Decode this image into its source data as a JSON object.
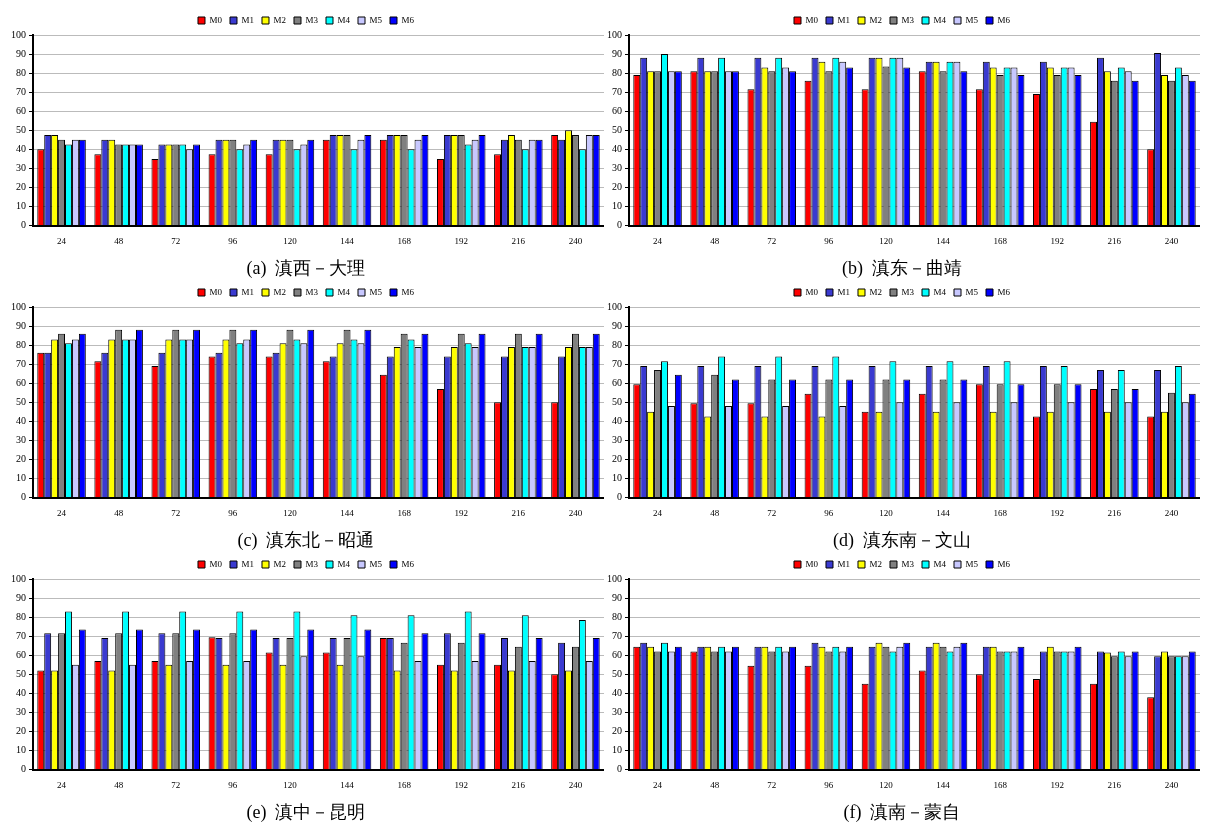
{
  "chart_data": [
    {
      "type": "bar",
      "title": "(a)  滇西－大理",
      "categories": [
        "24",
        "48",
        "72",
        "96",
        "120",
        "144",
        "168",
        "192",
        "216",
        "240"
      ],
      "ylim": [
        0,
        100
      ],
      "yticks": [
        0,
        10,
        20,
        30,
        40,
        50,
        60,
        70,
        80,
        90,
        100
      ],
      "grid": "y",
      "legend": "top",
      "series": [
        {
          "name": "M0",
          "color": "#ff0000",
          "values": [
            40,
            37.5,
            35,
            37.5,
            37.5,
            45,
            45,
            35,
            37.5,
            47.5
          ]
        },
        {
          "name": "M1",
          "color": "#3a3ad0",
          "values": [
            47.5,
            45,
            42.5,
            45,
            45,
            47.5,
            47.5,
            47.5,
            45,
            45
          ]
        },
        {
          "name": "M2",
          "color": "#ffff00",
          "values": [
            47.5,
            45,
            42.5,
            45,
            45,
            47.5,
            47.5,
            47.5,
            47.5,
            50
          ]
        },
        {
          "name": "M3",
          "color": "#808080",
          "values": [
            45,
            42.5,
            42.5,
            45,
            45,
            47.5,
            47.5,
            47.5,
            45,
            47.5
          ]
        },
        {
          "name": "M4",
          "color": "#00ffff",
          "values": [
            42.5,
            42.5,
            42.5,
            40,
            40,
            40,
            40,
            42.5,
            40,
            40
          ]
        },
        {
          "name": "M5",
          "color": "#c8c8ff",
          "values": [
            45,
            42.5,
            40,
            42.5,
            42.5,
            45,
            45,
            45,
            45,
            47.5
          ]
        },
        {
          "name": "M6",
          "color": "#0000ff",
          "values": [
            45,
            42.5,
            42.5,
            45,
            45,
            47.5,
            47.5,
            47.5,
            45,
            47.5
          ]
        }
      ]
    },
    {
      "type": "bar",
      "title": "(b)  滇东－曲靖",
      "categories": [
        "24",
        "48",
        "72",
        "96",
        "120",
        "144",
        "168",
        "192",
        "216",
        "240"
      ],
      "ylim": [
        0,
        100
      ],
      "yticks": [
        0,
        10,
        20,
        30,
        40,
        50,
        60,
        70,
        80,
        90,
        100
      ],
      "grid": "y",
      "legend": "top",
      "series": [
        {
          "name": "M0",
          "color": "#ff0000",
          "values": [
            79,
            81,
            71.5,
            76,
            71.5,
            81,
            71.5,
            69,
            54.5,
            40
          ]
        },
        {
          "name": "M1",
          "color": "#3a3ad0",
          "values": [
            88,
            88,
            88,
            88,
            88,
            86,
            86,
            86,
            88,
            90.5
          ]
        },
        {
          "name": "M2",
          "color": "#ffff00",
          "values": [
            81,
            81,
            83,
            86,
            88,
            86,
            83,
            83,
            81,
            79
          ]
        },
        {
          "name": "M3",
          "color": "#808080",
          "values": [
            81,
            81,
            81,
            81,
            83.5,
            81,
            79,
            79,
            76,
            76
          ]
        },
        {
          "name": "M4",
          "color": "#00ffff",
          "values": [
            90,
            88,
            88,
            88,
            88,
            86,
            83,
            83,
            83,
            83
          ]
        },
        {
          "name": "M5",
          "color": "#c8c8ff",
          "values": [
            81,
            81,
            83,
            86,
            88,
            86,
            83,
            83,
            81,
            79
          ]
        },
        {
          "name": "M6",
          "color": "#0000ff",
          "values": [
            81,
            81,
            81,
            83,
            83,
            81,
            79,
            79,
            76,
            76
          ]
        }
      ]
    },
    {
      "type": "bar",
      "title": "(c)  滇东北－昭通",
      "categories": [
        "24",
        "48",
        "72",
        "96",
        "120",
        "144",
        "168",
        "192",
        "216",
        "240"
      ],
      "ylim": [
        0,
        100
      ],
      "yticks": [
        0,
        10,
        20,
        30,
        40,
        50,
        60,
        70,
        80,
        90,
        100
      ],
      "grid": "y",
      "legend": "top",
      "series": [
        {
          "name": "M0",
          "color": "#ff0000",
          "values": [
            76,
            71.5,
            69,
            74,
            74,
            71.5,
            64.5,
            57,
            50,
            50
          ]
        },
        {
          "name": "M1",
          "color": "#3a3ad0",
          "values": [
            76,
            76,
            76,
            76,
            76,
            74,
            74,
            74,
            74,
            74
          ]
        },
        {
          "name": "M2",
          "color": "#ffff00",
          "values": [
            83,
            83,
            83,
            83,
            81,
            81,
            79,
            79,
            79,
            79
          ]
        },
        {
          "name": "M3",
          "color": "#808080",
          "values": [
            86,
            88,
            88,
            88,
            88,
            88,
            86,
            86,
            86,
            86
          ]
        },
        {
          "name": "M4",
          "color": "#00ffff",
          "values": [
            81,
            83,
            83,
            81,
            83,
            83,
            83,
            81,
            79,
            79
          ]
        },
        {
          "name": "M5",
          "color": "#c8c8ff",
          "values": [
            83,
            83,
            83,
            83,
            81,
            81,
            79,
            79,
            79,
            79
          ]
        },
        {
          "name": "M6",
          "color": "#0000ff",
          "values": [
            86,
            88,
            88,
            88,
            88,
            88,
            86,
            86,
            86,
            86
          ]
        }
      ]
    },
    {
      "type": "bar",
      "title": "(d)  滇东南－文山",
      "categories": [
        "24",
        "48",
        "72",
        "96",
        "120",
        "144",
        "168",
        "192",
        "216",
        "240"
      ],
      "ylim": [
        0,
        100
      ],
      "yticks": [
        0,
        10,
        20,
        30,
        40,
        50,
        60,
        70,
        80,
        90,
        100
      ],
      "grid": "y",
      "legend": "top",
      "series": [
        {
          "name": "M0",
          "color": "#ff0000",
          "values": [
            59.5,
            49.5,
            49.5,
            54.5,
            45,
            54.5,
            59.5,
            42.5,
            57,
            42.5
          ]
        },
        {
          "name": "M1",
          "color": "#3a3ad0",
          "values": [
            69,
            69,
            69,
            69,
            69,
            69,
            69,
            69,
            67,
            67
          ]
        },
        {
          "name": "M2",
          "color": "#ffff00",
          "values": [
            45,
            42.5,
            42.5,
            42.5,
            45,
            45,
            45,
            45,
            45,
            45
          ]
        },
        {
          "name": "M3",
          "color": "#808080",
          "values": [
            67,
            64.5,
            62,
            62,
            62,
            62,
            59.5,
            59.5,
            57,
            55
          ]
        },
        {
          "name": "M4",
          "color": "#00ffff",
          "values": [
            71.5,
            74,
            74,
            74,
            71.5,
            71.5,
            71.5,
            69,
            67,
            69
          ]
        },
        {
          "name": "M5",
          "color": "#c8c8ff",
          "values": [
            48,
            48,
            48,
            48,
            50,
            50,
            50,
            50,
            50,
            50
          ]
        },
        {
          "name": "M6",
          "color": "#0000ff",
          "values": [
            64.5,
            62,
            62,
            62,
            62,
            62,
            59.5,
            59.5,
            57,
            54.5
          ]
        }
      ]
    },
    {
      "type": "bar",
      "title": "(e)  滇中－昆明",
      "categories": [
        "24",
        "48",
        "72",
        "96",
        "120",
        "144",
        "168",
        "192",
        "216",
        "240"
      ],
      "ylim": [
        0,
        100
      ],
      "yticks": [
        0,
        10,
        20,
        30,
        40,
        50,
        60,
        70,
        80,
        90,
        100
      ],
      "grid": "y",
      "legend": "top",
      "series": [
        {
          "name": "M0",
          "color": "#ff0000",
          "values": [
            52,
            57,
            57,
            69.5,
            61.5,
            61.5,
            69,
            55,
            55,
            50
          ]
        },
        {
          "name": "M1",
          "color": "#3a3ad0",
          "values": [
            71.5,
            69,
            71.5,
            69,
            69,
            69,
            69,
            71.5,
            69,
            66.5
          ]
        },
        {
          "name": "M2",
          "color": "#ffff00",
          "values": [
            52,
            52,
            55,
            55,
            55,
            55,
            52,
            52,
            52,
            52
          ]
        },
        {
          "name": "M3",
          "color": "#808080",
          "values": [
            71.5,
            71.5,
            71.5,
            71.5,
            69,
            69,
            66.5,
            66.5,
            64.5,
            64.5
          ]
        },
        {
          "name": "M4",
          "color": "#00ffff",
          "values": [
            83,
            83,
            83,
            83,
            83,
            81,
            81,
            83,
            81,
            78.5
          ]
        },
        {
          "name": "M5",
          "color": "#c8c8ff",
          "values": [
            55,
            55,
            57,
            57,
            59.5,
            59.5,
            57,
            57,
            57,
            57
          ]
        },
        {
          "name": "M6",
          "color": "#0000ff",
          "values": [
            73.5,
            73.5,
            73.5,
            73.5,
            73.5,
            73.5,
            71.5,
            71.5,
            69,
            69
          ]
        }
      ]
    },
    {
      "type": "bar",
      "title": "(f)  滇南－蒙自",
      "categories": [
        "24",
        "48",
        "72",
        "96",
        "120",
        "144",
        "168",
        "192",
        "216",
        "240"
      ],
      "ylim": [
        0,
        100
      ],
      "yticks": [
        0,
        10,
        20,
        30,
        40,
        50,
        60,
        70,
        80,
        90,
        100
      ],
      "grid": "y",
      "legend": "top",
      "series": [
        {
          "name": "M0",
          "color": "#ff0000",
          "values": [
            64.5,
            62,
            54.5,
            54.5,
            45,
            52,
            50,
            47.5,
            45,
            38
          ]
        },
        {
          "name": "M1",
          "color": "#3a3ad0",
          "values": [
            66.5,
            64.5,
            64.5,
            66.5,
            64.5,
            64.5,
            64.5,
            62,
            62,
            59.5
          ]
        },
        {
          "name": "M2",
          "color": "#ffff00",
          "values": [
            64.5,
            64.5,
            64.5,
            64.5,
            66.5,
            66.5,
            64.5,
            64.5,
            61.5,
            62
          ]
        },
        {
          "name": "M3",
          "color": "#808080",
          "values": [
            62,
            62,
            62,
            62,
            64.5,
            64.5,
            62,
            62,
            59.5,
            59.5
          ]
        },
        {
          "name": "M4",
          "color": "#00ffff",
          "values": [
            66.5,
            64.5,
            64.5,
            64.5,
            62,
            62,
            62,
            62,
            62,
            59.5
          ]
        },
        {
          "name": "M5",
          "color": "#c8c8ff",
          "values": [
            62,
            62,
            62,
            62,
            64.5,
            64.5,
            62,
            62,
            59.5,
            59.5
          ]
        },
        {
          "name": "M6",
          "color": "#0000ff",
          "values": [
            64.5,
            64.5,
            64.5,
            64.5,
            66.5,
            66.5,
            64.5,
            64.5,
            62,
            62
          ]
        }
      ]
    }
  ]
}
